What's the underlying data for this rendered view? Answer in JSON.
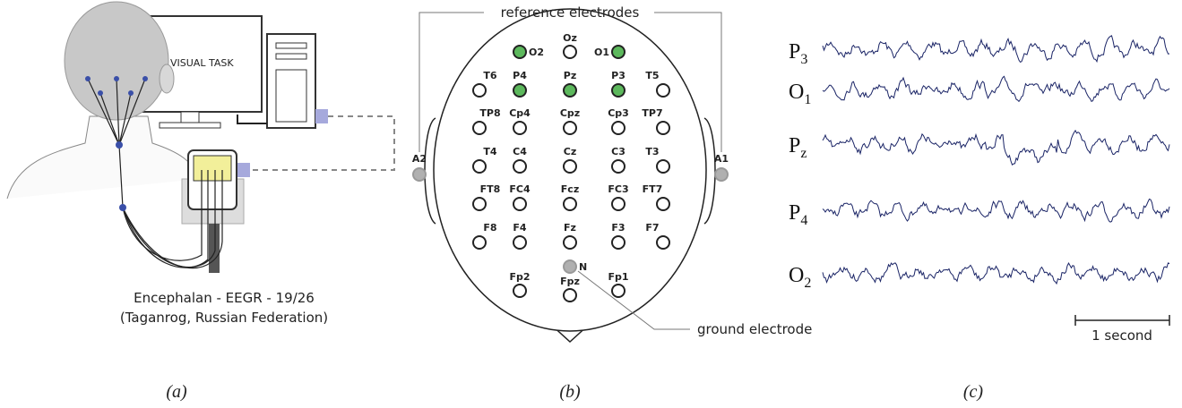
{
  "panel_a": {
    "screen_label": "VISUAL TASK",
    "device_name": "Encephalan - EEGR - 19/26",
    "device_location": "(Taganrog, Russian Federation)",
    "caption": "(a)"
  },
  "panel_b": {
    "reference_label": "reference electrodes",
    "ground_label": "ground electrode",
    "caption": "(b)",
    "electrodes": [
      {
        "label": "O2",
        "fill": "#5cb85c"
      },
      {
        "label": "Oz",
        "fill": "#ffffff"
      },
      {
        "label": "O1",
        "fill": "#5cb85c"
      },
      {
        "label": "T6",
        "fill": "#ffffff"
      },
      {
        "label": "P4",
        "fill": "#5cb85c"
      },
      {
        "label": "Pz",
        "fill": "#5cb85c"
      },
      {
        "label": "P3",
        "fill": "#5cb85c"
      },
      {
        "label": "T5",
        "fill": "#ffffff"
      },
      {
        "label": "TP8",
        "fill": "#ffffff"
      },
      {
        "label": "Cp4",
        "fill": "#ffffff"
      },
      {
        "label": "Cpz",
        "fill": "#ffffff"
      },
      {
        "label": "Cp3",
        "fill": "#ffffff"
      },
      {
        "label": "TP7",
        "fill": "#ffffff"
      },
      {
        "label": "T4",
        "fill": "#ffffff"
      },
      {
        "label": "C4",
        "fill": "#ffffff"
      },
      {
        "label": "Cz",
        "fill": "#ffffff"
      },
      {
        "label": "C3",
        "fill": "#ffffff"
      },
      {
        "label": "T3",
        "fill": "#ffffff"
      },
      {
        "label": "FT8",
        "fill": "#ffffff"
      },
      {
        "label": "FC4",
        "fill": "#ffffff"
      },
      {
        "label": "Fcz",
        "fill": "#ffffff"
      },
      {
        "label": "FC3",
        "fill": "#ffffff"
      },
      {
        "label": "FT7",
        "fill": "#ffffff"
      },
      {
        "label": "F8",
        "fill": "#ffffff"
      },
      {
        "label": "F4",
        "fill": "#ffffff"
      },
      {
        "label": "Fz",
        "fill": "#ffffff"
      },
      {
        "label": "F3",
        "fill": "#ffffff"
      },
      {
        "label": "F7",
        "fill": "#ffffff"
      },
      {
        "label": "Fp2",
        "fill": "#ffffff"
      },
      {
        "label": "Fpz",
        "fill": "#ffffff"
      },
      {
        "label": "Fp1",
        "fill": "#ffffff"
      },
      {
        "label": "N",
        "fill": "#b0b0b0"
      },
      {
        "label": "A2",
        "fill": "#b0b0b0"
      },
      {
        "label": "A1",
        "fill": "#b0b0b0"
      }
    ]
  },
  "panel_c": {
    "channels": [
      {
        "letter": "P",
        "sub": "3"
      },
      {
        "letter": "O",
        "sub": "1"
      },
      {
        "letter": "P",
        "sub": "z"
      },
      {
        "letter": "P",
        "sub": "4"
      },
      {
        "letter": "O",
        "sub": "2"
      }
    ],
    "scale_label": "1 second",
    "caption": "(c)"
  }
}
